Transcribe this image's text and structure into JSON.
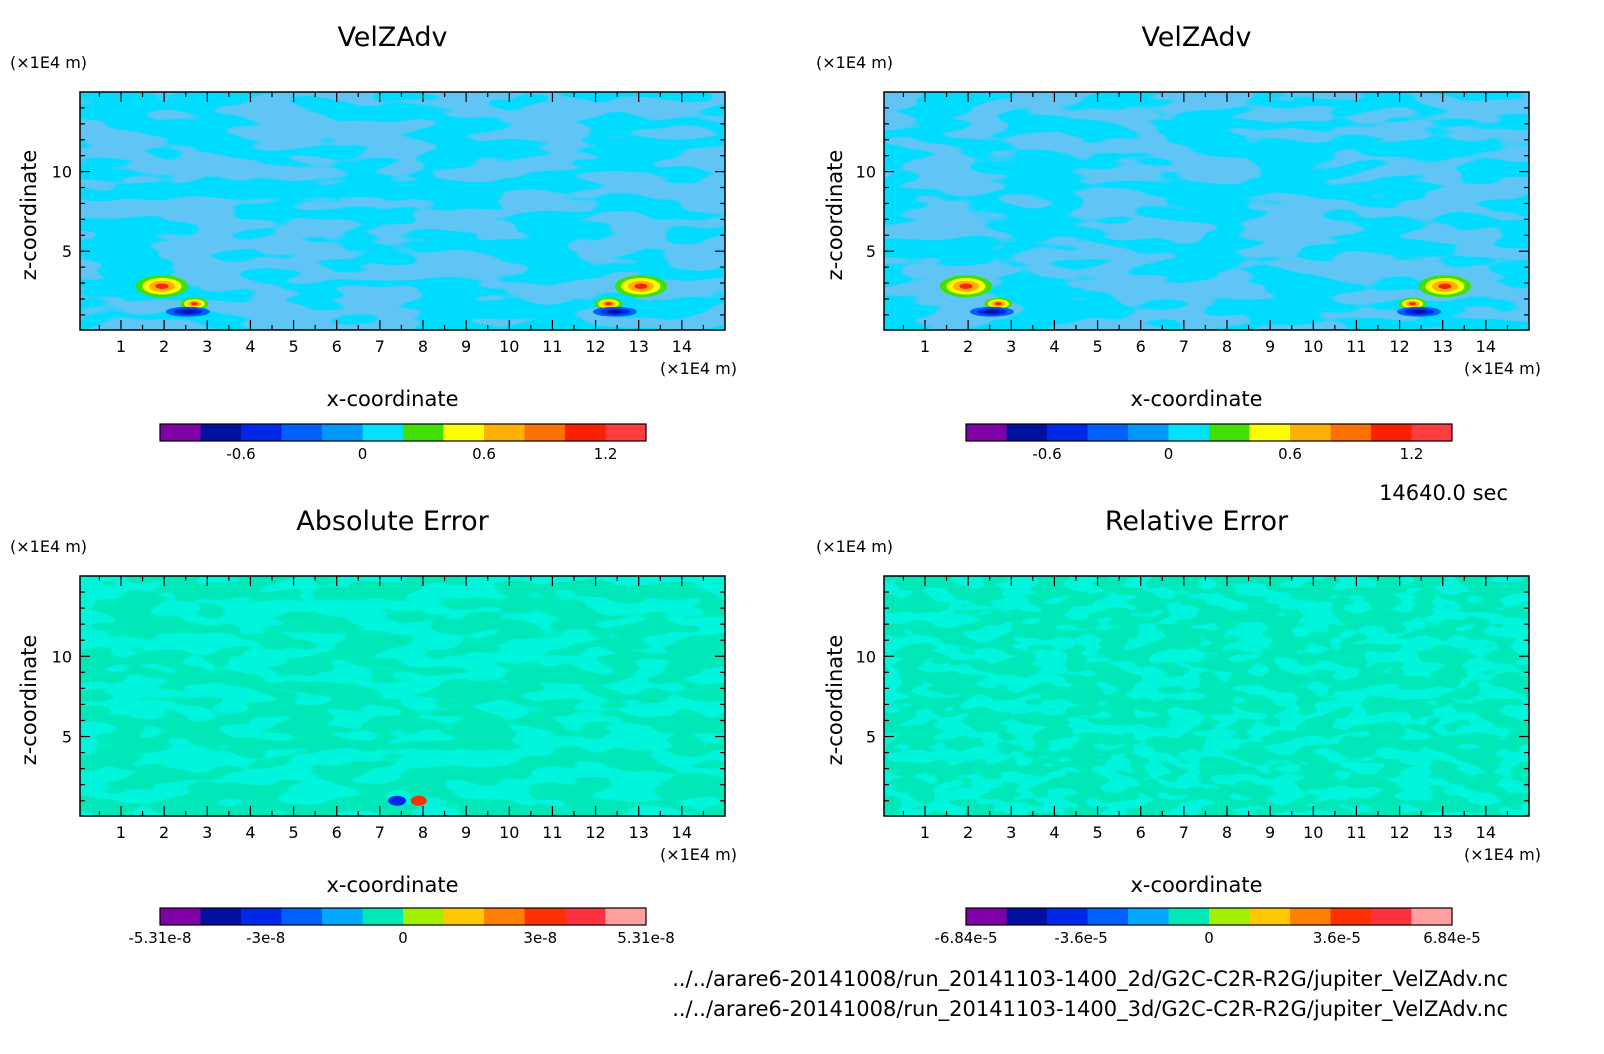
{
  "figure": {
    "time_label": "14640.0 sec",
    "files": [
      "../../arare6-20141008/run_20141103-1400_2d/G2C-C2R-R2G/jupiter_VelZAdv.nc",
      "../../arare6-20141008/run_20141103-1400_3d/G2C-C2R-R2G/jupiter_VelZAdv.nc"
    ]
  },
  "chart_data": [
    {
      "type": "heatmap",
      "title": "VelZAdv",
      "xlabel": "x-coordinate",
      "ylabel": "z-coordinate",
      "x_unit": "(×1E4 m)",
      "y_unit": "(×1E4 m)",
      "xlim": [
        0.05,
        15
      ],
      "ylim": [
        0.05,
        15
      ],
      "x_ticks": [
        1,
        2,
        3,
        4,
        5,
        6,
        7,
        8,
        9,
        10,
        11,
        12,
        13,
        14
      ],
      "y_ticks": [
        5,
        10
      ],
      "field_colors": [
        "#1e8ee6",
        "#00dcff"
      ],
      "colorbar": {
        "colors": [
          "#8000a8",
          "#0010a0",
          "#0028e8",
          "#0060ff",
          "#0098ff",
          "#00e0ff",
          "#40e000",
          "#ffff00",
          "#ffb000",
          "#ff7000",
          "#ff2000",
          "#ff3c40"
        ],
        "ticks": [
          -0.6,
          0,
          0.6,
          1.2
        ],
        "tick_labels": [
          "-0.6",
          "0",
          "0.6",
          "1.2"
        ],
        "range": [
          -1.0,
          1.4
        ]
      }
    },
    {
      "type": "heatmap",
      "title": "VelZAdv",
      "xlabel": "x-coordinate",
      "ylabel": "z-coordinate",
      "x_unit": "(×1E4 m)",
      "y_unit": "(×1E4 m)",
      "xlim": [
        0.05,
        15
      ],
      "ylim": [
        0.05,
        15
      ],
      "x_ticks": [
        1,
        2,
        3,
        4,
        5,
        6,
        7,
        8,
        9,
        10,
        11,
        12,
        13,
        14
      ],
      "y_ticks": [
        5,
        10
      ],
      "field_colors": [
        "#1e8ee6",
        "#00dcff"
      ],
      "colorbar": {
        "colors": [
          "#8000a8",
          "#0010a0",
          "#0028e8",
          "#0060ff",
          "#0098ff",
          "#00e0ff",
          "#40e000",
          "#ffff00",
          "#ffb000",
          "#ff7000",
          "#ff2000",
          "#ff3c40"
        ],
        "ticks": [
          -0.6,
          0,
          0.6,
          1.2
        ],
        "tick_labels": [
          "-0.6",
          "0",
          "0.6",
          "1.2"
        ],
        "range": [
          -1.0,
          1.4
        ]
      }
    },
    {
      "type": "heatmap",
      "title": "Absolute Error",
      "xlabel": "x-coordinate",
      "ylabel": "z-coordinate",
      "x_unit": "(×1E4 m)",
      "y_unit": "(×1E4 m)",
      "xlim": [
        0.05,
        15
      ],
      "ylim": [
        0.05,
        15
      ],
      "x_ticks": [
        1,
        2,
        3,
        4,
        5,
        6,
        7,
        8,
        9,
        10,
        11,
        12,
        13,
        14
      ],
      "y_ticks": [
        5,
        10
      ],
      "field_colors": [
        "#a0f000",
        "#00e8b8"
      ],
      "colorbar": {
        "colors": [
          "#8000a8",
          "#0010a0",
          "#0028e8",
          "#0060ff",
          "#00a8ff",
          "#00e8b8",
          "#a0f000",
          "#ffc800",
          "#ff8000",
          "#ff3000",
          "#ff3040",
          "#ffa0a0"
        ],
        "ticks": [
          -5.31e-08,
          -3e-08,
          0,
          3e-08,
          5.31e-08
        ],
        "tick_labels": [
          "-5.31e-8",
          "-3e-8",
          "0",
          "3e-8",
          "5.31e-8"
        ],
        "range": [
          -5.31e-08,
          5.31e-08
        ]
      }
    },
    {
      "type": "heatmap",
      "title": "Relative Error",
      "xlabel": "x-coordinate",
      "ylabel": "z-coordinate",
      "x_unit": "(×1E4 m)",
      "y_unit": "(×1E4 m)",
      "xlim": [
        0.05,
        15
      ],
      "ylim": [
        0.05,
        15
      ],
      "x_ticks": [
        1,
        2,
        3,
        4,
        5,
        6,
        7,
        8,
        9,
        10,
        11,
        12,
        13,
        14
      ],
      "y_ticks": [
        5,
        10
      ],
      "field_colors": [
        "#a0f000",
        "#00e8b8"
      ],
      "colorbar": {
        "colors": [
          "#8000a8",
          "#0010a0",
          "#0028e8",
          "#0060ff",
          "#00a8ff",
          "#00e8b8",
          "#a0f000",
          "#ffc800",
          "#ff8000",
          "#ff3000",
          "#ff3040",
          "#ffa0a0"
        ],
        "ticks": [
          -6.84e-05,
          -3.6e-05,
          0,
          3.6e-05,
          6.84e-05
        ],
        "tick_labels": [
          "-6.84e-5",
          "-3.6e-5",
          "0",
          "3.6e-5",
          "6.84e-5"
        ],
        "range": [
          -6.84e-05,
          6.84e-05
        ]
      }
    }
  ]
}
